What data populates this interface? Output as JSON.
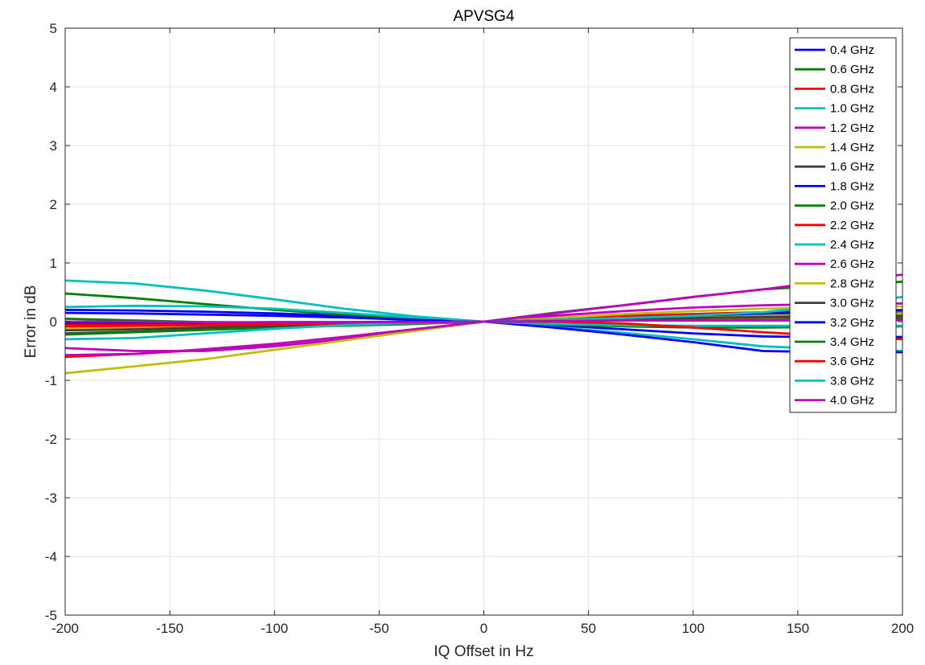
{
  "chart_data": {
    "type": "line",
    "title": "APVSG4",
    "xlabel": "IQ Offset in Hz",
    "ylabel": "Error in dB",
    "xlim": [
      -200,
      200
    ],
    "ylim": [
      -5,
      5
    ],
    "xticks": [
      -200,
      -150,
      -100,
      -50,
      0,
      50,
      100,
      150,
      200
    ],
    "yticks": [
      -5,
      -4,
      -3,
      -2,
      -1,
      0,
      1,
      2,
      3,
      4,
      5
    ],
    "grid": true,
    "legend_position": "top-right",
    "x": [
      -200,
      -166.7,
      -133.3,
      -100,
      -66.7,
      -33.3,
      0,
      33.3,
      66.7,
      100,
      133.3,
      166.7,
      200
    ],
    "series": [
      {
        "name": "0.4 GHz",
        "color": "#0000ff",
        "values": [
          0.2,
          0.19,
          0.17,
          0.14,
          0.1,
          0.05,
          0,
          -0.06,
          -0.13,
          -0.2,
          -0.25,
          -0.27,
          -0.26
        ]
      },
      {
        "name": "0.6 GHz",
        "color": "#008000",
        "values": [
          0.48,
          0.4,
          0.3,
          0.2,
          0.12,
          0.06,
          0,
          -0.05,
          -0.08,
          -0.1,
          -0.1,
          -0.09,
          -0.08
        ]
      },
      {
        "name": "0.8 GHz",
        "color": "#ff0000",
        "values": [
          -0.6,
          -0.55,
          -0.48,
          -0.38,
          -0.26,
          -0.13,
          0,
          0.06,
          0.1,
          0.13,
          0.16,
          0.18,
          0.2
        ]
      },
      {
        "name": "1.0 GHz",
        "color": "#00bfbf",
        "values": [
          0.25,
          0.27,
          0.26,
          0.22,
          0.15,
          0.07,
          0,
          -0.09,
          -0.19,
          -0.3,
          -0.42,
          -0.47,
          -0.5
        ]
      },
      {
        "name": "1.2 GHz",
        "color": "#bf00bf",
        "values": [
          -0.45,
          -0.5,
          -0.5,
          -0.42,
          -0.3,
          -0.15,
          0,
          0.1,
          0.18,
          0.24,
          0.28,
          0.3,
          0.31
        ]
      },
      {
        "name": "1.4 GHz",
        "color": "#bfbf00",
        "values": [
          -0.88,
          -0.76,
          -0.64,
          -0.48,
          -0.32,
          -0.16,
          0,
          0.06,
          0.13,
          0.18,
          0.22,
          0.24,
          0.26
        ]
      },
      {
        "name": "1.6 GHz",
        "color": "#404040",
        "values": [
          -0.2,
          -0.17,
          -0.13,
          -0.09,
          -0.06,
          -0.03,
          0,
          0.03,
          0.06,
          0.09,
          0.12,
          0.14,
          0.15
        ]
      },
      {
        "name": "1.8 GHz",
        "color": "#0000ff",
        "values": [
          0.15,
          0.14,
          0.12,
          0.1,
          0.07,
          0.03,
          0,
          -0.1,
          -0.22,
          -0.35,
          -0.5,
          -0.52,
          -0.52
        ]
      },
      {
        "name": "2.0 GHz",
        "color": "#008000",
        "values": [
          -0.22,
          -0.18,
          -0.14,
          -0.1,
          -0.07,
          -0.04,
          0,
          0.15,
          0.28,
          0.42,
          0.55,
          0.62,
          0.68
        ]
      },
      {
        "name": "2.2 GHz",
        "color": "#ff0000",
        "values": [
          -0.05,
          -0.05,
          -0.04,
          -0.04,
          -0.03,
          -0.02,
          0,
          0.02,
          0.04,
          0.06,
          0.07,
          0.08,
          0.08
        ]
      },
      {
        "name": "2.4 GHz",
        "color": "#00bfbf",
        "values": [
          0.7,
          0.65,
          0.53,
          0.38,
          0.22,
          0.09,
          0,
          -0.04,
          -0.06,
          -0.07,
          -0.07,
          -0.07,
          -0.07
        ]
      },
      {
        "name": "2.6 GHz",
        "color": "#bf00bf",
        "values": [
          -0.57,
          -0.55,
          -0.47,
          -0.38,
          -0.26,
          -0.13,
          0,
          0.14,
          0.28,
          0.42,
          0.55,
          0.7,
          0.8
        ]
      },
      {
        "name": "2.8 GHz",
        "color": "#bfbf00",
        "values": [
          -0.12,
          -0.1,
          -0.08,
          -0.06,
          -0.04,
          -0.02,
          0,
          0.03,
          0.05,
          0.08,
          0.1,
          0.12,
          0.14
        ]
      },
      {
        "name": "3.0 GHz",
        "color": "#404040",
        "values": [
          -0.15,
          -0.13,
          -0.1,
          -0.07,
          -0.05,
          -0.02,
          0,
          0.02,
          0.04,
          0.06,
          0.08,
          0.09,
          0.1
        ]
      },
      {
        "name": "3.2 GHz",
        "color": "#0000ff",
        "values": [
          -0.02,
          -0.02,
          -0.02,
          -0.01,
          -0.01,
          0,
          0,
          0.03,
          0.06,
          0.1,
          0.14,
          0.17,
          0.19
        ]
      },
      {
        "name": "3.4 GHz",
        "color": "#008000",
        "values": [
          0.05,
          0.02,
          -0.01,
          -0.02,
          -0.02,
          -0.01,
          0,
          0.01,
          0.02,
          0.02,
          0.03,
          0.04,
          0.05
        ]
      },
      {
        "name": "3.6 GHz",
        "color": "#ff0000",
        "values": [
          -0.08,
          -0.07,
          -0.06,
          -0.05,
          -0.03,
          -0.02,
          0,
          0.0,
          -0.03,
          -0.1,
          -0.18,
          -0.25,
          -0.3
        ]
      },
      {
        "name": "3.8 GHz",
        "color": "#00bfbf",
        "values": [
          -0.3,
          -0.28,
          -0.2,
          -0.12,
          -0.06,
          -0.02,
          0,
          0.03,
          0.06,
          0.1,
          0.16,
          0.28,
          0.42
        ]
      },
      {
        "name": "4.0 GHz",
        "color": "#bf00bf",
        "values": [
          0.0,
          0.0,
          -0.01,
          -0.01,
          -0.01,
          -0.01,
          0,
          0.01,
          0.02,
          0.02,
          0.02,
          0.02,
          0.03
        ]
      }
    ]
  }
}
